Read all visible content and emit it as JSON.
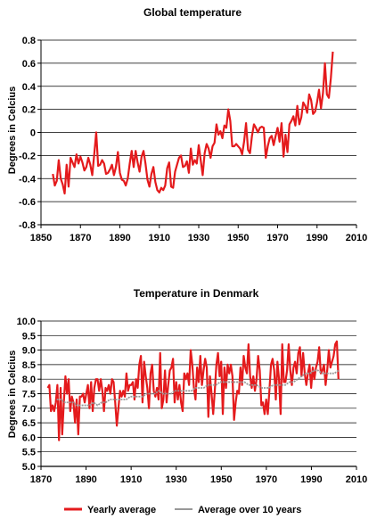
{
  "chart_data": [
    {
      "type": "line",
      "title": "Global temperature",
      "ylabel": "Degrees in Celcius",
      "xlim": [
        1850,
        2010
      ],
      "ylim": [
        -0.8,
        0.8
      ],
      "xticks": [
        "1850",
        "1870",
        "1890",
        "1910",
        "1930",
        "1950",
        "1970",
        "1990",
        "2010"
      ],
      "yticks": [
        "-0.8",
        "-0.6",
        "-0.4",
        "-0.2",
        "0",
        "0.2",
        "0.4",
        "0.6",
        "0.8"
      ],
      "grid": "horizontal",
      "series_color": "#e41a1c",
      "x_start": 1856,
      "values": [
        -0.36,
        -0.46,
        -0.42,
        -0.24,
        -0.4,
        -0.45,
        -0.53,
        -0.28,
        -0.47,
        -0.22,
        -0.26,
        -0.3,
        -0.19,
        -0.27,
        -0.21,
        -0.26,
        -0.33,
        -0.3,
        -0.22,
        -0.28,
        -0.37,
        -0.19,
        0.0,
        -0.29,
        -0.28,
        -0.24,
        -0.27,
        -0.36,
        -0.35,
        -0.32,
        -0.28,
        -0.37,
        -0.3,
        -0.17,
        -0.35,
        -0.41,
        -0.42,
        -0.46,
        -0.4,
        -0.27,
        -0.16,
        -0.3,
        -0.16,
        -0.26,
        -0.34,
        -0.21,
        -0.16,
        -0.27,
        -0.41,
        -0.47,
        -0.36,
        -0.3,
        -0.43,
        -0.5,
        -0.52,
        -0.48,
        -0.5,
        -0.46,
        -0.31,
        -0.26,
        -0.47,
        -0.48,
        -0.34,
        -0.28,
        -0.22,
        -0.2,
        -0.3,
        -0.29,
        -0.25,
        -0.35,
        -0.14,
        -0.28,
        -0.24,
        -0.27,
        -0.11,
        -0.24,
        -0.37,
        -0.18,
        -0.1,
        -0.14,
        -0.22,
        -0.12,
        -0.09,
        0.07,
        -0.02,
        0.01,
        -0.05,
        0.06,
        0.04,
        0.2,
        0.1,
        -0.12,
        -0.12,
        -0.1,
        -0.12,
        -0.14,
        -0.19,
        -0.08,
        0.08,
        -0.15,
        -0.18,
        -0.03,
        0.07,
        0.04,
        0.0,
        0.04,
        0.05,
        0.04,
        -0.22,
        -0.12,
        -0.05,
        -0.03,
        -0.11,
        -0.03,
        0.04,
        -0.08,
        0.08,
        -0.21,
        -0.02,
        -0.17,
        0.07,
        0.1,
        0.14,
        0.06,
        0.23,
        0.07,
        0.13,
        0.26,
        0.23,
        0.17,
        0.33,
        0.28,
        0.16,
        0.18,
        0.26,
        0.37,
        0.21,
        0.34,
        0.6,
        0.33,
        0.3,
        0.47,
        0.7
      ]
    },
    {
      "type": "line",
      "title": "Temperature in Denmark",
      "ylabel": "Degrees in Celcius",
      "xlim": [
        1870,
        2010
      ],
      "ylim": [
        5.0,
        10.0
      ],
      "xticks": [
        "1870",
        "1890",
        "1910",
        "1930",
        "1950",
        "1970",
        "1990",
        "2010"
      ],
      "yticks": [
        "5.0",
        "5.5",
        "6.0",
        "6.5",
        "7.0",
        "7.5",
        "8.0",
        "8.5",
        "9.0",
        "9.5",
        "10.0"
      ],
      "grid": "horizontal",
      "x_start": 1873,
      "series": [
        {
          "name": "Yearly average",
          "color": "#e41a1c",
          "values": [
            7.7,
            7.8,
            6.9,
            7.1,
            6.9,
            7.2,
            7.8,
            5.9,
            7.7,
            6.1,
            7.2,
            8.1,
            7.5,
            8.0,
            6.9,
            7.4,
            7.2,
            6.5,
            7.3,
            6.1,
            7.4,
            7.4,
            7.5,
            7.2,
            7.5,
            7.8,
            7.0,
            7.9,
            6.9,
            7.7,
            8.0,
            8.0,
            7.6,
            8.0,
            7.6,
            6.9,
            7.7,
            7.6,
            7.8,
            7.5,
            8.0,
            7.9,
            7.2,
            6.4,
            7.0,
            7.6,
            7.4,
            7.6,
            7.4,
            8.2,
            7.6,
            7.8,
            7.8,
            7.9,
            7.3,
            8.0,
            7.7,
            8.5,
            8.8,
            7.2,
            8.6,
            8.1,
            7.7,
            7.0,
            8.2,
            8.5,
            7.6,
            7.4,
            7.7,
            7.3,
            8.9,
            7.0,
            7.3,
            8.3,
            7.2,
            7.8,
            8.3,
            8.4,
            8.7,
            7.2,
            7.9,
            7.3,
            7.8,
            7.2,
            6.9,
            8.2,
            8.0,
            8.2,
            7.8,
            9.0,
            8.5,
            7.7,
            7.3,
            8.4,
            7.9,
            8.8,
            7.8,
            8.3,
            8.7,
            8.4,
            6.7,
            8.1,
            7.5,
            6.8,
            7.6,
            8.5,
            8.9,
            8.1,
            8.6,
            6.8,
            8.4,
            7.7,
            8.5,
            8.2,
            8.5,
            8.1,
            6.6,
            7.2,
            7.6,
            7.5,
            8.4,
            7.8,
            8.8,
            8.4,
            8.2,
            9.2,
            8.1,
            7.7,
            8.1,
            7.6,
            8.0,
            8.8,
            8.3,
            7.1,
            7.2,
            6.8,
            7.3,
            6.8,
            7.6,
            8.5,
            8.7,
            8.3,
            7.3,
            8.6,
            8.0,
            6.8,
            9.2,
            7.9,
            7.9,
            8.3,
            9.2,
            8.3,
            7.8,
            8.4,
            8.6,
            8.2,
            8.9,
            9.1,
            8.1,
            8.9,
            8.2,
            7.8,
            8.2,
            8.5,
            7.7,
            8.4,
            8.0,
            8.4,
            8.6,
            9.1,
            8.2,
            8.3,
            8.5,
            7.8,
            8.3,
            9.0,
            8.4,
            8.6,
            8.8,
            9.2,
            9.3,
            8.0
          ]
        },
        {
          "name": "Average over 10 years",
          "color": "#999999",
          "values": [
            7.3,
            7.3,
            7.2,
            7.2,
            7.2,
            7.1,
            7.1,
            7.1,
            7.1,
            7.2,
            7.1,
            7.2,
            7.2,
            7.3,
            7.3,
            7.3,
            7.3,
            7.3,
            7.4,
            7.4,
            7.4,
            7.4,
            7.5,
            7.5,
            7.5,
            7.6,
            7.5,
            7.5,
            7.5,
            7.6,
            7.6,
            7.6,
            7.6,
            7.6,
            7.7,
            7.7,
            7.7,
            7.8,
            7.8,
            7.8,
            7.9,
            7.9,
            7.9,
            7.9,
            7.9,
            7.9,
            7.9,
            7.8,
            7.8,
            7.8,
            7.7,
            7.7,
            7.7,
            7.8,
            7.8,
            7.8,
            7.8,
            7.9,
            7.9,
            8.0,
            8.1,
            8.2,
            8.2,
            8.3,
            8.3,
            8.2,
            8.2,
            8.2,
            8.2,
            8.3
          ]
        }
      ],
      "legend": "bottom"
    }
  ]
}
